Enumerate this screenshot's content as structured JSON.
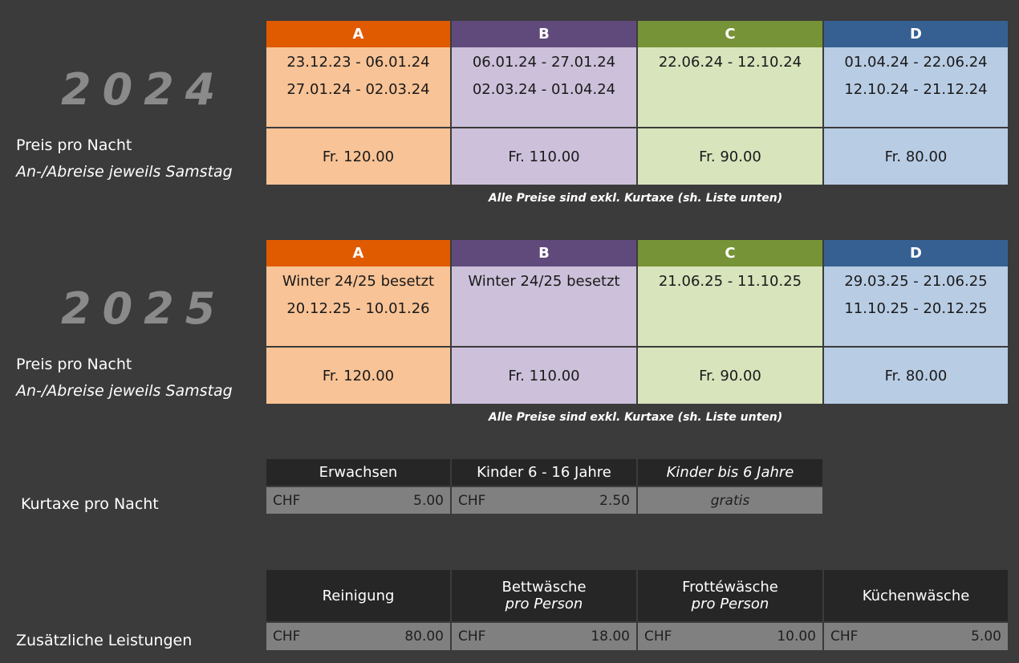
{
  "seasons": [
    "A",
    "B",
    "C",
    "D"
  ],
  "year2024": {
    "year": "2024",
    "label": "Preis pro Nacht",
    "sublabel": "An-/Abreise jeweils Samstag",
    "dates": [
      [
        "23.12.23 - 06.01.24",
        "27.01.24 - 02.03.24"
      ],
      [
        "06.01.24 - 27.01.24",
        "02.03.24 - 01.04.24"
      ],
      [
        "22.06.24 - 12.10.24",
        ""
      ],
      [
        "01.04.24 - 22.06.24",
        "12.10.24 - 21.12.24"
      ]
    ],
    "prices": [
      "Fr. 120.00",
      "Fr. 110.00",
      "Fr. 90.00",
      "Fr. 80.00"
    ],
    "note": "Alle Preise sind exkl. Kurtaxe (sh. Liste unten)"
  },
  "year2025": {
    "year": "2025",
    "label": "Preis pro Nacht",
    "sublabel": "An-/Abreise jeweils Samstag",
    "dates": [
      [
        "Winter 24/25 besetzt",
        "20.12.25 - 10.01.26"
      ],
      [
        "Winter 24/25 besetzt",
        ""
      ],
      [
        "21.06.25 - 11.10.25",
        ""
      ],
      [
        "29.03.25 - 21.06.25",
        "11.10.25 - 20.12.25"
      ]
    ],
    "prices": [
      "Fr. 120.00",
      "Fr. 110.00",
      "Fr. 90.00",
      "Fr. 80.00"
    ],
    "note": "Alle Preise sind exkl. Kurtaxe (sh. Liste unten)"
  },
  "kurtaxe": {
    "label": "Kurtaxe pro Nacht",
    "headers": [
      "Erwachsen",
      "Kinder 6 - 16 Jahre",
      "Kinder bis 6 Jahre"
    ],
    "currency": "CHF",
    "values": [
      "5.00",
      "2.50"
    ],
    "free": "gratis"
  },
  "extras": {
    "label": "Zusätzliche Leistungen",
    "headers": [
      {
        "title": "Reinigung",
        "sub": ""
      },
      {
        "title": "Bettwäsche",
        "sub": "pro Person"
      },
      {
        "title": "Frottéwäsche",
        "sub": "pro Person"
      },
      {
        "title": "Küchenwäsche",
        "sub": ""
      }
    ],
    "currency": "CHF",
    "values": [
      "80.00",
      "18.00",
      "10.00",
      "5.00"
    ]
  },
  "colors": {
    "A_header": "#e05a00",
    "B_header": "#604a7b",
    "C_header": "#779337",
    "D_header": "#366092",
    "A_cell": "#f8c396",
    "B_cell": "#ccc0da",
    "C_cell": "#d8e4bc",
    "D_cell": "#b8cce4"
  }
}
